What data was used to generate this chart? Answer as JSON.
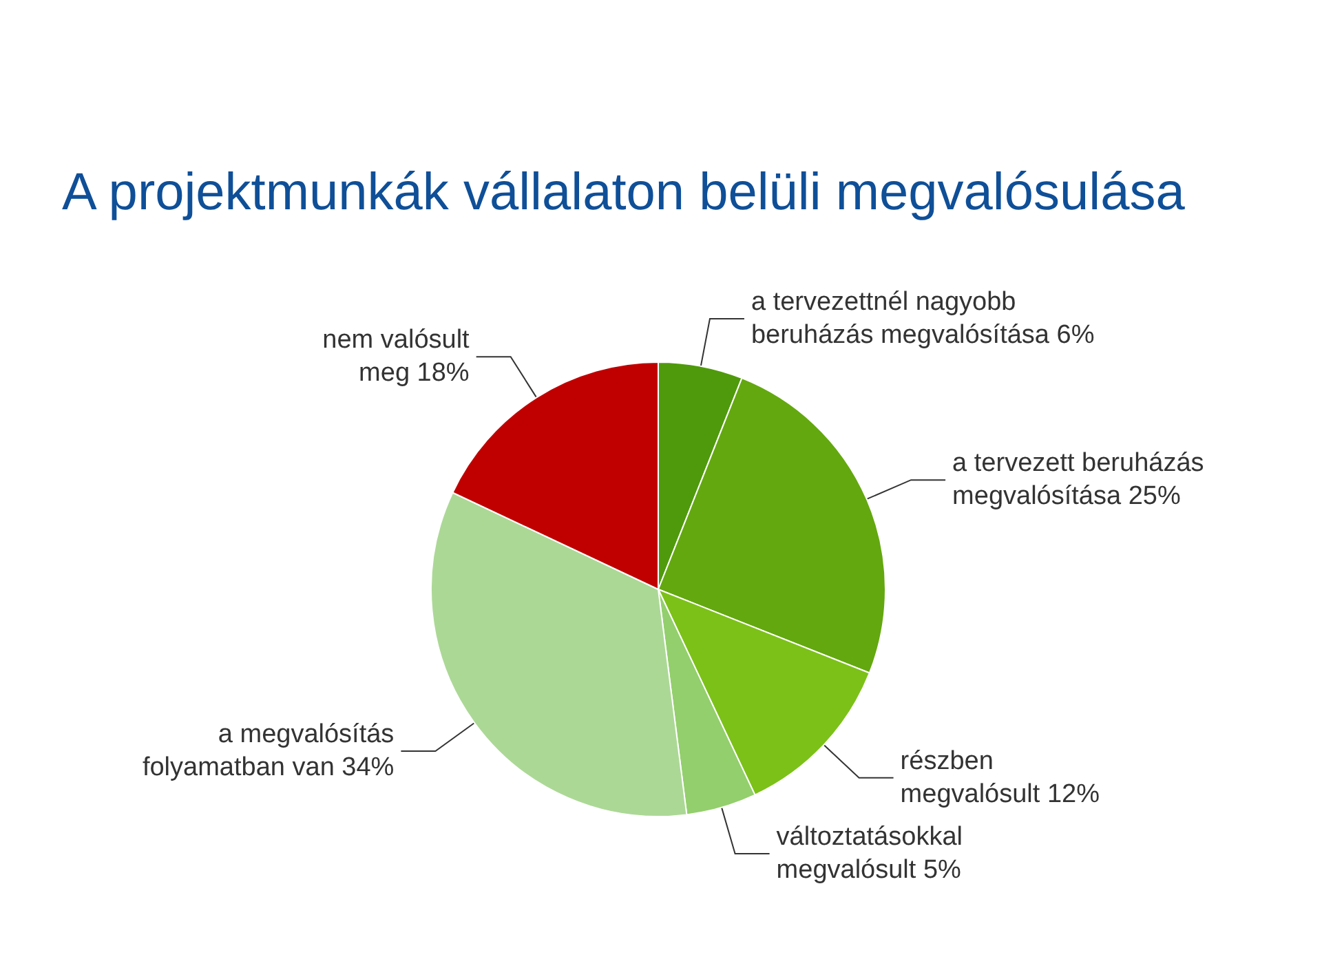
{
  "chart_data": {
    "type": "pie",
    "title": "A projektmunkák vállalaton belüli megvalósulása",
    "categories": [
      "a tervezettnél nagyobb beruházás megvalósítása",
      "a tervezett beruházás megvalósítása",
      "részben megvalósult",
      "változtatásokkal megvalósult",
      "a megvalósítás folyamatban van",
      "nem valósult meg"
    ],
    "values": [
      6,
      25,
      12,
      5,
      34,
      18
    ],
    "value_labels": [
      "6%",
      "25%",
      "12%",
      "5%",
      "34%",
      "18%"
    ],
    "colors": [
      "#4f9a0c",
      "#63a80f",
      "#7cc118",
      "#93cf6c",
      "#acd896",
      "#c00000"
    ],
    "legend": false
  }
}
